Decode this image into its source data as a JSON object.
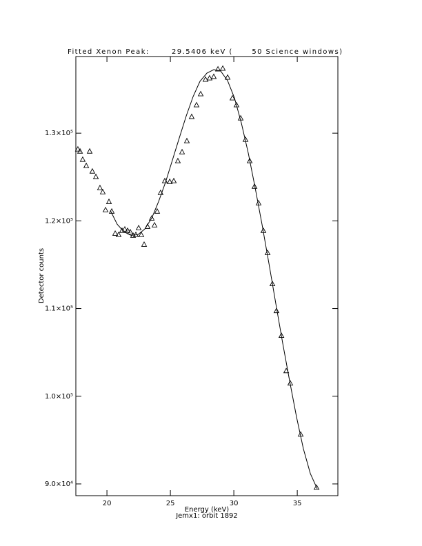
{
  "chart_data": {
    "type": "scatter",
    "title": "Fitted Xenon Peak:       29.5406 keV (      50 Science windows)",
    "x_label": "Energy (keV)",
    "subtitle": "Jemx1: orbit 1892",
    "y_label": "Detector counts",
    "xlim": [
      17.55,
      38.2
    ],
    "xticks": [
      20,
      25,
      30,
      35
    ],
    "ylim": [
      88660,
      138740
    ],
    "yticks": [
      {
        "value": 90000,
        "label": "9.0×10⁴"
      },
      {
        "value": 100000,
        "label": "1.0×10⁵"
      },
      {
        "value": 110000,
        "label": "1.1×10⁵"
      },
      {
        "value": 120000,
        "label": "1.2×10⁵"
      },
      {
        "value": 130000,
        "label": "1.3×10⁵"
      }
    ],
    "series": [
      {
        "type": "scatter",
        "color": "#000000",
        "x": [
          17.71,
          17.88,
          18.09,
          18.37,
          18.64,
          18.85,
          19.13,
          19.45,
          19.67,
          19.89,
          20.16,
          20.38,
          20.65,
          20.92,
          21.19,
          21.41,
          21.63,
          21.84,
          22.06,
          22.28,
          22.5,
          22.71,
          22.93,
          23.2,
          23.53,
          23.75,
          23.96,
          24.23,
          24.56,
          24.95,
          25.27,
          25.59,
          25.92,
          26.3,
          26.68,
          27.06,
          27.39,
          27.77,
          28.09,
          28.42,
          28.75,
          29.13,
          29.51,
          29.89,
          30.21,
          30.54,
          30.92,
          31.25,
          31.63,
          31.95,
          32.33,
          32.66,
          33.04,
          33.36,
          33.75,
          34.13,
          34.45,
          35.27,
          36.52
        ],
        "values": [
          128190,
          127950,
          127010,
          126300,
          127950,
          125670,
          125040,
          123780,
          123310,
          121260,
          122200,
          121100,
          118580,
          118430,
          118900,
          119060,
          118900,
          118740,
          118350,
          118430,
          119210,
          118430,
          117320,
          119370,
          120310,
          119530,
          121100,
          123230,
          124570,
          124490,
          124570,
          126850,
          127870,
          129130,
          131890,
          133230,
          134490,
          136140,
          136300,
          136460,
          137320,
          137400,
          136380,
          134020,
          133230,
          131730,
          129290,
          126850,
          123940,
          122050,
          118900,
          116380,
          112830,
          109760,
          106930,
          102910,
          101500,
          95670,
          89610
        ]
      },
      {
        "type": "line",
        "color": "#000000",
        "x": [
          20.27,
          20.81,
          21.35,
          21.9,
          22.44,
          22.98,
          23.53,
          24.07,
          24.62,
          25.16,
          25.7,
          26.25,
          26.79,
          27.33,
          27.88,
          28.42,
          28.96,
          29.51,
          30.05,
          30.59,
          31.14,
          31.68,
          32.22,
          32.77,
          33.31,
          33.85,
          34.4,
          34.94,
          35.48,
          36.03,
          36.57
        ],
        "values": [
          121180,
          119610,
          118740,
          118350,
          118430,
          119060,
          120310,
          122200,
          124410,
          126930,
          129450,
          131970,
          134170,
          135910,
          136850,
          137240,
          137090,
          135980,
          134020,
          131180,
          127720,
          123780,
          119610,
          115120,
          110550,
          106060,
          101730,
          97640,
          94020,
          91180,
          89450
        ]
      }
    ]
  }
}
